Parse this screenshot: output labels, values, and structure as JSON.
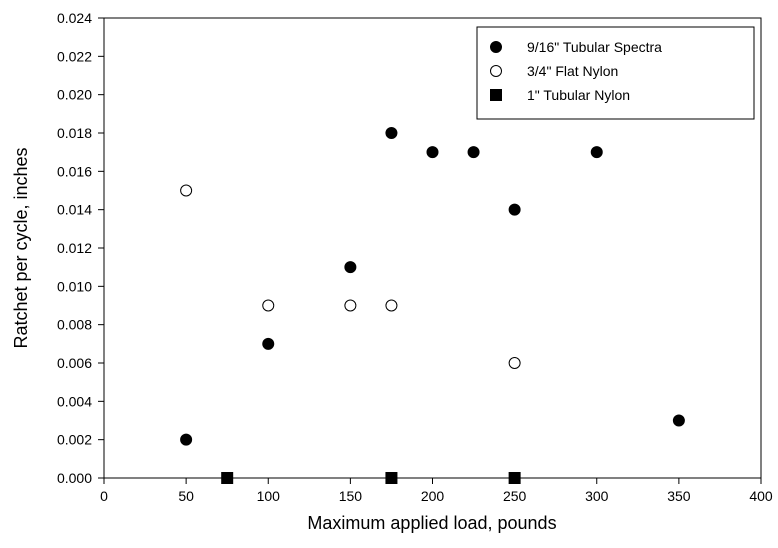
{
  "chart_data": {
    "type": "scatter",
    "title": "",
    "xlabel": "Maximum applied load, pounds",
    "ylabel": "Ratchet per cycle, inches",
    "xlim": [
      0,
      400
    ],
    "ylim": [
      0,
      0.024
    ],
    "xticks": [
      "0",
      "50",
      "100",
      "150",
      "200",
      "250",
      "300",
      "350",
      "400"
    ],
    "yticks": [
      "0.000",
      "0.002",
      "0.004",
      "0.006",
      "0.008",
      "0.010",
      "0.012",
      "0.014",
      "0.016",
      "0.018",
      "0.020",
      "0.022",
      "0.024"
    ],
    "grid": false,
    "legend_position": "top-right",
    "series": [
      {
        "name": "9/16\" Tubular Spectra",
        "marker": "filled-circle",
        "color": "#000000",
        "points": [
          [
            50,
            0.002
          ],
          [
            100,
            0.007
          ],
          [
            150,
            0.011
          ],
          [
            175,
            0.018
          ],
          [
            200,
            0.017
          ],
          [
            225,
            0.017
          ],
          [
            250,
            0.014
          ],
          [
            300,
            0.017
          ],
          [
            350,
            0.003
          ]
        ]
      },
      {
        "name": "3/4\" Flat Nylon",
        "marker": "open-circle",
        "color": "#000000",
        "points": [
          [
            50,
            0.015
          ],
          [
            100,
            0.009
          ],
          [
            150,
            0.009
          ],
          [
            175,
            0.009
          ],
          [
            250,
            0.006
          ]
        ]
      },
      {
        "name": "1\" Tubular Nylon",
        "marker": "filled-square",
        "color": "#000000",
        "points": [
          [
            75,
            0.0
          ],
          [
            175,
            0.0
          ],
          [
            250,
            0.0
          ]
        ]
      }
    ]
  }
}
